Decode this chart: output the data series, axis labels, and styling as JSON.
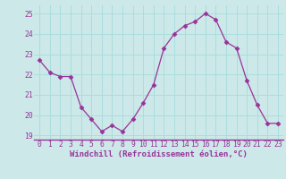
{
  "x": [
    0,
    1,
    2,
    3,
    4,
    5,
    6,
    7,
    8,
    9,
    10,
    11,
    12,
    13,
    14,
    15,
    16,
    17,
    18,
    19,
    20,
    21,
    22,
    23
  ],
  "y": [
    22.7,
    22.1,
    21.9,
    21.9,
    20.4,
    19.8,
    19.2,
    19.5,
    19.2,
    19.8,
    20.6,
    21.5,
    23.3,
    24.0,
    24.4,
    24.6,
    25.0,
    24.7,
    23.6,
    23.3,
    21.7,
    20.5,
    19.6,
    19.6
  ],
  "line_color": "#993399",
  "marker": "D",
  "markersize": 2.5,
  "linewidth": 0.9,
  "xlabel": "Windchill (Refroidissement éolien,°C)",
  "xlabel_fontsize": 6.5,
  "ylim": [
    18.8,
    25.4
  ],
  "yticks": [
    19,
    20,
    21,
    22,
    23,
    24,
    25
  ],
  "xticks": [
    0,
    1,
    2,
    3,
    4,
    5,
    6,
    7,
    8,
    9,
    10,
    11,
    12,
    13,
    14,
    15,
    16,
    17,
    18,
    19,
    20,
    21,
    22,
    23
  ],
  "grid_color": "#aadddd",
  "bg_color": "#cce8e8",
  "tick_fontsize": 5.8,
  "xlabel_color": "#993399",
  "tick_color": "#993399",
  "spine_color": "#993399"
}
